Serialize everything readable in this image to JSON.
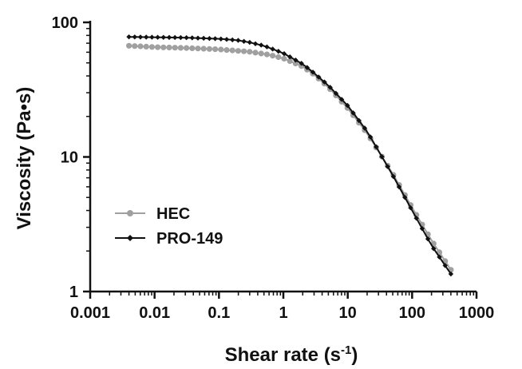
{
  "chart_data": {
    "type": "line",
    "title": "",
    "xlabel": "Shear rate (s",
    "xlabel_sup": "-1",
    "xlabel_end": ")",
    "ylabel": "Viscosity (Pa•s)",
    "xscale": "log",
    "yscale": "log",
    "xlim": [
      0.001,
      1000
    ],
    "ylim": [
      1,
      100
    ],
    "grid": false,
    "legend_position": "middle-left",
    "x_ticks": [
      "0.001",
      "0.01",
      "0.1",
      "1",
      "10",
      "100",
      "1000"
    ],
    "y_ticks": [
      "1",
      "10",
      "100"
    ],
    "series": [
      {
        "name": "HEC",
        "color": "#a0a0a0",
        "marker": "circle",
        "x": [
          0.004,
          0.01,
          0.03,
          0.1,
          0.3,
          0.6,
          1,
          2,
          3,
          5,
          10,
          20,
          50,
          100,
          200,
          400
        ],
        "values": [
          67,
          65.5,
          64.5,
          63,
          60.5,
          57.5,
          54,
          47,
          41,
          33,
          23,
          15,
          7.5,
          4.2,
          2.4,
          1.45
        ]
      },
      {
        "name": "PRO-149",
        "color": "#111111",
        "marker": "diamond",
        "x": [
          0.004,
          0.01,
          0.03,
          0.1,
          0.2,
          0.3,
          0.5,
          1,
          2,
          3,
          5,
          10,
          20,
          50,
          100,
          200,
          400
        ],
        "values": [
          78,
          77.5,
          77,
          75.5,
          73.5,
          71,
          67,
          59,
          49,
          42,
          34,
          24,
          15.5,
          7.3,
          4,
          2.2,
          1.35
        ]
      }
    ]
  }
}
